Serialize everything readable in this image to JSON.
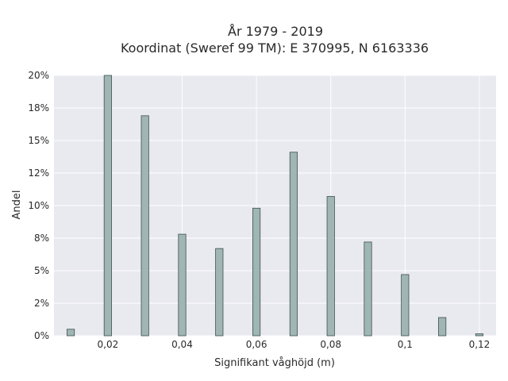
{
  "chart_data": {
    "type": "bar",
    "title_line1": "År 1979 - 2019",
    "title_line2": "Koordinat (Sweref 99 TM): E 370995, N 6163336",
    "xlabel": "Signifikant våghöjd (m)",
    "ylabel": "Andel",
    "xlim": [
      0.0055,
      0.1245
    ],
    "ylim": [
      0,
      0.2
    ],
    "xticks": [
      0.02,
      0.04,
      0.06,
      0.08,
      0.1,
      0.12
    ],
    "xtick_labels": [
      "0,02",
      "0,04",
      "0,06",
      "0,08",
      "0,1",
      "0,12"
    ],
    "yticks": [
      0,
      0.025,
      0.05,
      0.075,
      0.1,
      0.125,
      0.15,
      0.175,
      0.2
    ],
    "ytick_labels": [
      "0%",
      "2%",
      "5%",
      "8%",
      "10%",
      "12%",
      "15%",
      "18%",
      "20%"
    ],
    "grid": true,
    "bar_width": 0.002,
    "x": [
      0.01,
      0.02,
      0.03,
      0.04,
      0.05,
      0.06,
      0.07,
      0.08,
      0.09,
      0.1,
      0.11,
      0.12
    ],
    "values": [
      0.005,
      0.2,
      0.169,
      0.078,
      0.067,
      0.098,
      0.141,
      0.107,
      0.072,
      0.047,
      0.014,
      0.0015
    ],
    "colors": {
      "background": "#e9e9f0",
      "grid": "#ffffff",
      "bar_fill": "#9fb6b5",
      "bar_stroke": "#3d4f4e"
    }
  }
}
